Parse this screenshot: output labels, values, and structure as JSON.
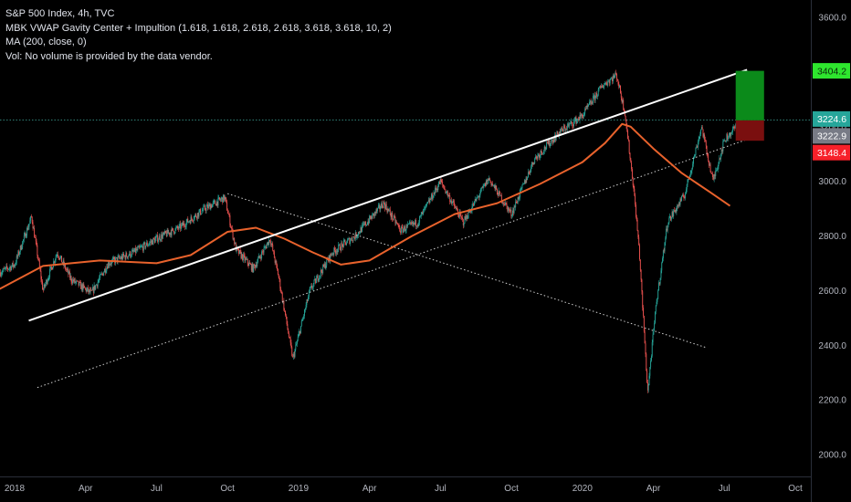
{
  "header": {
    "title": "S&P 500 Index, 4h, TVC",
    "indicators": [
      "MBK VWAP Gavity Center + Impultion (1.618, 1.618, 2.618, 2.618, 3.618, 3.618, 10, 2)",
      "MA (200, close, 0)",
      "Vol: No volume is provided by the data vendor."
    ]
  },
  "colors": {
    "background": "#000000",
    "up_candle": "#26a69a",
    "down_candle": "#ef5350",
    "ma_line": "#e8622c",
    "trendline": "#ffffff",
    "target_zone": "#0b8a1a",
    "stop_zone": "#7a0f0f",
    "target_tag": "#2ee62e",
    "current_tag": "#26a69a",
    "stop_tag": "#f7202a"
  },
  "price_tags": {
    "target": "3404.2",
    "current": "3224.6",
    "entry": "3222.9",
    "stop": "3148.4"
  },
  "chart_data": {
    "type": "candlestick",
    "title": "S&P 500 Index, 4h, TVC",
    "ylim": [
      1900,
      3660
    ],
    "y_ticks": [
      "3600.0",
      "3400.0",
      "3200.0",
      "3000.0",
      "2800.0",
      "2600.0",
      "2400.0",
      "2200.0",
      "2000.0"
    ],
    "y_tick_values": [
      3600,
      3400,
      3200,
      3000,
      2800,
      2600,
      2400,
      2200,
      2000
    ],
    "x_ticks": [
      "2018",
      "Apr",
      "Jul",
      "Oct",
      "2019",
      "Apr",
      "Jul",
      "Oct",
      "2020",
      "Apr",
      "Jul",
      "Oct"
    ],
    "x_tick_years": [
      2018.0,
      2018.25,
      2018.5,
      2018.75,
      2019.0,
      2019.25,
      2019.5,
      2019.75,
      2020.0,
      2020.25,
      2020.5,
      2020.75
    ],
    "price_path": [
      [
        2017.75,
        2560
      ],
      [
        2017.83,
        2600
      ],
      [
        2017.92,
        2650
      ],
      [
        2018.0,
        2695
      ],
      [
        2018.06,
        2870
      ],
      [
        2018.1,
        2600
      ],
      [
        2018.15,
        2740
      ],
      [
        2018.2,
        2640
      ],
      [
        2018.27,
        2590
      ],
      [
        2018.33,
        2700
      ],
      [
        2018.42,
        2740
      ],
      [
        2018.5,
        2790
      ],
      [
        2018.58,
        2830
      ],
      [
        2018.67,
        2900
      ],
      [
        2018.74,
        2940
      ],
      [
        2018.78,
        2750
      ],
      [
        2018.84,
        2680
      ],
      [
        2018.9,
        2790
      ],
      [
        2018.93,
        2650
      ],
      [
        2018.98,
        2350
      ],
      [
        2019.04,
        2600
      ],
      [
        2019.12,
        2740
      ],
      [
        2019.2,
        2800
      ],
      [
        2019.3,
        2920
      ],
      [
        2019.36,
        2820
      ],
      [
        2019.42,
        2850
      ],
      [
        2019.5,
        3000
      ],
      [
        2019.58,
        2850
      ],
      [
        2019.67,
        3010
      ],
      [
        2019.75,
        2880
      ],
      [
        2019.83,
        3080
      ],
      [
        2019.92,
        3180
      ],
      [
        2020.0,
        3240
      ],
      [
        2020.07,
        3350
      ],
      [
        2020.12,
        3390
      ],
      [
        2020.15,
        3250
      ],
      [
        2020.18,
        2980
      ],
      [
        2020.2,
        2750
      ],
      [
        2020.23,
        2230
      ],
      [
        2020.26,
        2550
      ],
      [
        2020.3,
        2850
      ],
      [
        2020.36,
        2950
      ],
      [
        2020.42,
        3200
      ],
      [
        2020.46,
        3000
      ],
      [
        2020.5,
        3150
      ],
      [
        2020.56,
        3224
      ]
    ],
    "ma_200": [
      [
        2017.75,
        2520
      ],
      [
        2017.9,
        2580
      ],
      [
        2018.1,
        2690
      ],
      [
        2018.3,
        2710
      ],
      [
        2018.5,
        2700
      ],
      [
        2018.62,
        2730
      ],
      [
        2018.75,
        2815
      ],
      [
        2018.85,
        2830
      ],
      [
        2018.95,
        2790
      ],
      [
        2019.05,
        2740
      ],
      [
        2019.15,
        2695
      ],
      [
        2019.25,
        2710
      ],
      [
        2019.4,
        2800
      ],
      [
        2019.55,
        2880
      ],
      [
        2019.7,
        2920
      ],
      [
        2019.85,
        2990
      ],
      [
        2020.0,
        3070
      ],
      [
        2020.08,
        3140
      ],
      [
        2020.14,
        3210
      ],
      [
        2020.17,
        3200
      ],
      [
        2020.25,
        3120
      ],
      [
        2020.35,
        3030
      ],
      [
        2020.45,
        2960
      ],
      [
        2020.52,
        2910
      ]
    ],
    "trendline_upper": [
      [
        2018.05,
        2490
      ],
      [
        2020.58,
        3408
      ]
    ],
    "trendline_lower_dotted": [
      [
        2018.08,
        2245
      ],
      [
        2020.64,
        3175
      ]
    ],
    "trendline_falling_dotted": [
      [
        2018.75,
        2955
      ],
      [
        2020.44,
        2390
      ]
    ],
    "horizontal_dotted_level": 3224.6,
    "position": {
      "entry": 3222.9,
      "target": 3404.2,
      "stop": 3148.4,
      "x_start": 2020.54,
      "x_end": 2020.64
    }
  }
}
